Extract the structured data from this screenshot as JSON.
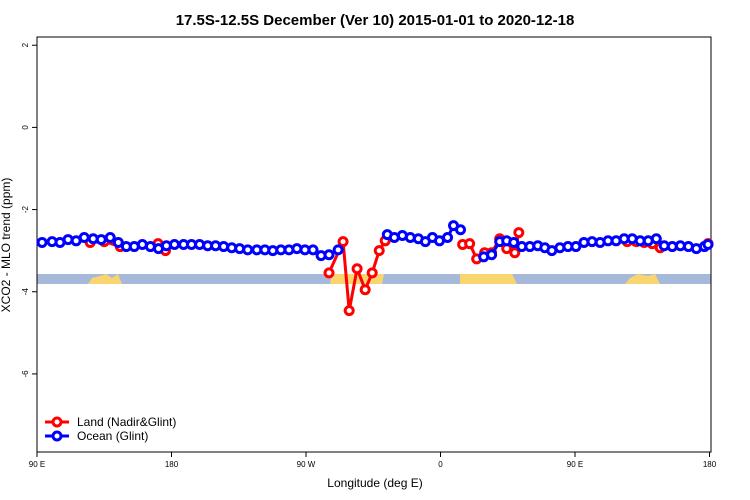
{
  "chart_data": {
    "type": "line",
    "title": "17.5S-12.5S December (Ver 10)   2015-01-01 to 2020-12-18",
    "xlabel": "Longitude (deg E)",
    "ylabel": "XCO2 - MLO trend (ppm)",
    "xlim": [
      90,
      541
    ],
    "ylim": [
      -7.9,
      2.2
    ],
    "xticks": [
      {
        "value": 90,
        "label": "90 E"
      },
      180,
      {
        "value": 270,
        "label": "90 W"
      },
      {
        "value": 360,
        "label": "0"
      },
      {
        "value": 450,
        "label": "90 E"
      },
      {
        "value": 540,
        "label": "180"
      }
    ],
    "yticks": [
      2,
      0,
      -2,
      -4,
      -6
    ],
    "legend": "bottom-left",
    "series": [
      {
        "name": "Land (Nadir&Glint)",
        "color": "#ff0000",
        "x": [
          125.6,
          135.0,
          145.7,
          null,
          171,
          176,
          null,
          285.4,
          294.8,
          298.9,
          304.2,
          309.6,
          314.3,
          319.0,
          323.0,
          null,
          374.8,
          379.5,
          384.2,
          389.5,
          394.2,
          399.6,
          404.3,
          409.7,
          412.4,
          null,
          484.9,
          490.9,
          496.3,
          501.7,
          507.0,
          null,
          539
        ],
        "values": [
          -2.8,
          -2.78,
          -2.9,
          null,
          -2.83,
          -3.0,
          null,
          -3.54,
          -2.78,
          -4.46,
          -3.44,
          -3.95,
          -3.54,
          -3.0,
          -2.76,
          null,
          -2.85,
          -2.83,
          -3.2,
          -3.05,
          -3.05,
          -2.71,
          -2.95,
          -3.05,
          -2.56,
          null,
          -2.78,
          -2.78,
          -2.8,
          -2.83,
          -2.93,
          null,
          -2.83
        ]
      },
      {
        "name": "Ocean (Glint)",
        "color": "#0000ff",
        "x": [
          93.4,
          100.1,
          105.4,
          110.8,
          116.2,
          121.6,
          127.6,
          133.0,
          139.0,
          144.4,
          149.8,
          155.1,
          160.5,
          165.9,
          171.3,
          176.6,
          182.0,
          188.1,
          193.4,
          198.8,
          204.2,
          209.5,
          214.9,
          220.3,
          225.6,
          231.0,
          237.1,
          242.5,
          247.8,
          253.2,
          258.6,
          263.9,
          269.3,
          274.7,
          280.1,
          285.4,
          291.5,
          null,
          324.4,
          329.1,
          334.5,
          339.8,
          345.2,
          349.9,
          354.6,
          359.3,
          364.7,
          368.7,
          373.4,
          null,
          388.9,
          394.2,
          399.6,
          404.3,
          409.0,
          414.4,
          419.8,
          425.1,
          429.8,
          434.5,
          439.9,
          445.3,
          450.6,
          456.0,
          461.4,
          466.8,
          472.1,
          477.5,
          482.9,
          488.3,
          493.6,
          499.0,
          504.4,
          509.7,
          515.1,
          520.5,
          525.9,
          531.2,
          536.6,
          539
        ],
        "values": [
          -2.8,
          -2.78,
          -2.8,
          -2.73,
          -2.76,
          -2.68,
          -2.71,
          -2.73,
          -2.68,
          -2.8,
          -2.9,
          -2.9,
          -2.85,
          -2.9,
          -2.95,
          -2.88,
          -2.85,
          -2.85,
          -2.85,
          -2.85,
          -2.88,
          -2.88,
          -2.9,
          -2.93,
          -2.95,
          -2.98,
          -2.98,
          -2.98,
          -3.0,
          -2.98,
          -2.98,
          -2.95,
          -2.98,
          -2.98,
          -3.12,
          -3.1,
          -2.98,
          null,
          -2.61,
          -2.68,
          -2.63,
          -2.68,
          -2.71,
          -2.78,
          -2.68,
          -2.76,
          -2.68,
          -2.39,
          -2.49,
          null,
          -3.15,
          -3.1,
          -2.78,
          -2.76,
          -2.8,
          -2.9,
          -2.9,
          -2.88,
          -2.93,
          -3.0,
          -2.93,
          -2.9,
          -2.9,
          -2.8,
          -2.78,
          -2.8,
          -2.76,
          -2.76,
          -2.71,
          -2.71,
          -2.76,
          -2.76,
          -2.71,
          -2.88,
          -2.9,
          -2.88,
          -2.9,
          -2.95,
          -2.9,
          -2.85
        ]
      }
    ]
  }
}
